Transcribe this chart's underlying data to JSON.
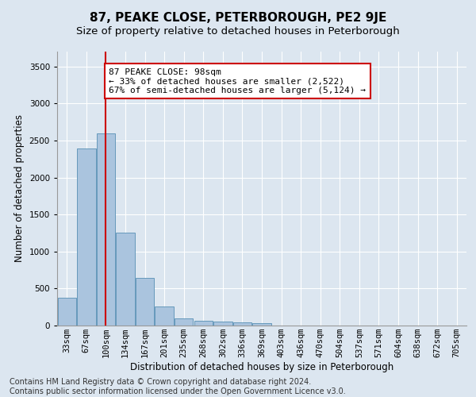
{
  "title": "87, PEAKE CLOSE, PETERBOROUGH, PE2 9JE",
  "subtitle": "Size of property relative to detached houses in Peterborough",
  "xlabel": "Distribution of detached houses by size in Peterborough",
  "ylabel": "Number of detached properties",
  "categories": [
    "33sqm",
    "67sqm",
    "100sqm",
    "134sqm",
    "167sqm",
    "201sqm",
    "235sqm",
    "268sqm",
    "302sqm",
    "336sqm",
    "369sqm",
    "403sqm",
    "436sqm",
    "470sqm",
    "504sqm",
    "537sqm",
    "571sqm",
    "604sqm",
    "638sqm",
    "672sqm",
    "705sqm"
  ],
  "values": [
    380,
    2390,
    2600,
    1250,
    640,
    260,
    95,
    60,
    55,
    45,
    30,
    0,
    0,
    0,
    0,
    0,
    0,
    0,
    0,
    0,
    0
  ],
  "bar_color": "#aac4de",
  "bar_edge_color": "#6699bb",
  "vline_x_index": 2,
  "vline_color": "#cc0000",
  "annotation_text": "87 PEAKE CLOSE: 98sqm\n← 33% of detached houses are smaller (2,522)\n67% of semi-detached houses are larger (5,124) →",
  "annotation_box_color": "#ffffff",
  "annotation_box_edge": "#cc0000",
  "ylim": [
    0,
    3700
  ],
  "yticks": [
    0,
    500,
    1000,
    1500,
    2000,
    2500,
    3000,
    3500
  ],
  "footer_line1": "Contains HM Land Registry data © Crown copyright and database right 2024.",
  "footer_line2": "Contains public sector information licensed under the Open Government Licence v3.0.",
  "bg_color": "#dce6f0",
  "plot_bg_color": "#dce6f0",
  "title_fontsize": 11,
  "subtitle_fontsize": 9.5,
  "axis_label_fontsize": 8.5,
  "tick_fontsize": 7.5,
  "annotation_fontsize": 8,
  "footer_fontsize": 7
}
